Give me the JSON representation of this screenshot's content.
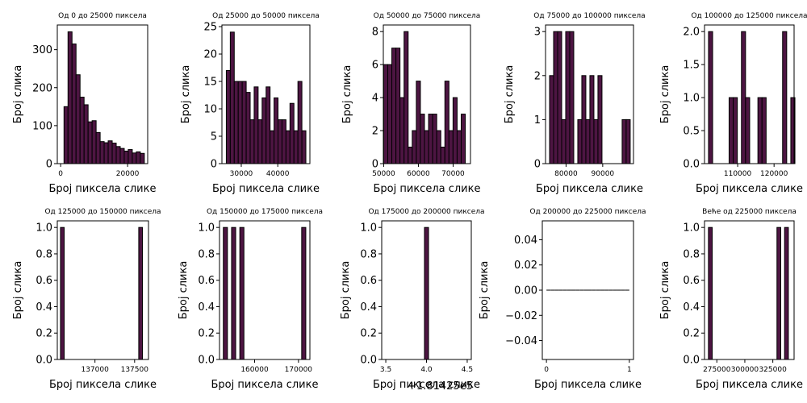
{
  "bar_color": "#4d1542",
  "edge_color": "#000000",
  "chart_data": [
    {
      "type": "bar",
      "title": "Од 0 до 25000 пиксела",
      "xlabel": "Број пиксела слике",
      "ylabel": "Број слика",
      "xlim": [
        -1000,
        26000
      ],
      "ylim": [
        0,
        365
      ],
      "xticks": [
        {
          "v": 0,
          "t": "0"
        },
        {
          "v": 20000,
          "t": "20000"
        }
      ],
      "yticks": [
        {
          "v": 0,
          "t": "0"
        },
        {
          "v": 100,
          "t": "100"
        },
        {
          "v": 200,
          "t": "200"
        },
        {
          "v": 300,
          "t": "300"
        }
      ],
      "x_tick_size": "small",
      "bins": {
        "start": 1000,
        "width": 1200
      },
      "values": [
        150,
        347,
        315,
        234,
        175,
        155,
        110,
        113,
        82,
        58,
        55,
        60,
        54,
        45,
        40,
        33,
        37,
        28,
        31,
        27
      ]
    },
    {
      "type": "bar",
      "title": "Од 25000 до 50000 пиксела",
      "xlabel": "Број пиксела слике",
      "ylabel": "Број слика",
      "xlim": [
        24700,
        48800
      ],
      "ylim": [
        0,
        25.3
      ],
      "xticks": [
        {
          "v": 30000,
          "t": "30000"
        },
        {
          "v": 40000,
          "t": "40000"
        }
      ],
      "yticks": [
        {
          "v": 0,
          "t": "0"
        },
        {
          "v": 5,
          "t": "5"
        },
        {
          "v": 10,
          "t": "10"
        },
        {
          "v": 15,
          "t": "15"
        },
        {
          "v": 20,
          "t": "20"
        },
        {
          "v": 25,
          "t": "25"
        }
      ],
      "x_tick_size": "small",
      "bins": {
        "start": 25900,
        "width": 1090
      },
      "values": [
        17,
        24,
        15,
        15,
        15,
        13,
        8,
        14,
        8,
        12,
        14,
        6,
        12,
        8,
        8,
        6,
        11,
        6,
        15,
        6
      ]
    },
    {
      "type": "bar",
      "title": "Од 50000 до 75000 пиксела",
      "xlabel": "Број пиксела слике",
      "ylabel": "Број слика",
      "xlim": [
        49900,
        75000
      ],
      "ylim": [
        0,
        8.4
      ],
      "xticks": [
        {
          "v": 50000,
          "t": "50000"
        },
        {
          "v": 60000,
          "t": "60000"
        },
        {
          "v": 70000,
          "t": "70000"
        }
      ],
      "yticks": [
        {
          "v": 0,
          "t": "0"
        },
        {
          "v": 2,
          "t": "2"
        },
        {
          "v": 4,
          "t": "4"
        },
        {
          "v": 6,
          "t": "6"
        },
        {
          "v": 8,
          "t": "8"
        }
      ],
      "x_tick_size": "small",
      "bins": {
        "start": 50000,
        "width": 1175
      },
      "values": [
        6,
        6,
        7,
        7,
        4,
        8,
        1,
        2,
        5,
        3,
        2,
        3,
        3,
        2,
        1,
        5,
        2,
        4,
        2,
        3
      ]
    },
    {
      "type": "bar",
      "title": "Од 75000 до 100000 пиксела",
      "xlabel": "Број пиксела слике",
      "ylabel": "Број слика",
      "xlim": [
        74400,
        98400
      ],
      "ylim": [
        0,
        3.15
      ],
      "xticks": [
        {
          "v": 80000,
          "t": "80000"
        },
        {
          "v": 90000,
          "t": "90000"
        }
      ],
      "yticks": [
        {
          "v": 0,
          "t": "0"
        },
        {
          "v": 1,
          "t": "1"
        },
        {
          "v": 2,
          "t": "2"
        },
        {
          "v": 3,
          "t": "3"
        }
      ],
      "x_tick_size": "small",
      "bins": {
        "start": 75500,
        "width": 1100
      },
      "values": [
        2,
        3,
        3,
        1,
        3,
        3,
        0,
        1,
        2,
        1,
        2,
        1,
        2,
        0,
        0,
        0,
        0,
        0,
        1,
        1
      ]
    },
    {
      "type": "bar",
      "title": "Од 100000 до 125000 пиксела",
      "xlabel": "Број пиксела слике",
      "ylabel": "Број слика",
      "xlim": [
        100900,
        125500
      ],
      "ylim": [
        0,
        2.1
      ],
      "xticks": [
        {
          "v": 110000,
          "t": "110000"
        },
        {
          "v": 120000,
          "t": "120000"
        }
      ],
      "yticks": [
        {
          "v": 0,
          "t": "0.0"
        },
        {
          "v": 0.5,
          "t": "0.5"
        },
        {
          "v": 1,
          "t": "1.0"
        },
        {
          "v": 1.5,
          "t": "1.5"
        },
        {
          "v": 2,
          "t": "2.0"
        }
      ],
      "x_tick_size": "small",
      "bins": {
        "start": 102000,
        "width": 1130
      },
      "values": [
        2,
        0,
        0,
        0,
        0,
        1,
        1,
        0,
        2,
        1,
        0,
        0,
        1,
        1,
        0,
        0,
        0,
        0,
        2,
        0,
        1
      ]
    },
    {
      "type": "bar",
      "title": "Од 125000 до 150000 пиксела",
      "xlabel": "Број пиксела слике",
      "ylabel": "Број слика",
      "xlim": [
        136525,
        137675
      ],
      "ylim": [
        0,
        1.05
      ],
      "xticks": [
        {
          "v": 137000,
          "t": "137000"
        },
        {
          "v": 137500,
          "t": "137500"
        }
      ],
      "yticks": [
        {
          "v": 0,
          "t": "0.0"
        },
        {
          "v": 0.2,
          "t": "0.2"
        },
        {
          "v": 0.4,
          "t": "0.4"
        },
        {
          "v": 0.6,
          "t": "0.6"
        },
        {
          "v": 0.8,
          "t": "0.8"
        },
        {
          "v": 1,
          "t": "1.0"
        }
      ],
      "x_tick_size": "small",
      "bins": {
        "start": 136565,
        "width": 47
      },
      "values": [
        1,
        0,
        0,
        0,
        0,
        0,
        0,
        0,
        0,
        0,
        0,
        0,
        0,
        0,
        0,
        0,
        0,
        0,
        0,
        0,
        0,
        1
      ]
    },
    {
      "type": "bar",
      "title": "Од 150000 до 175000 пиксела",
      "xlabel": "Број пиксела слике",
      "ylabel": "Број слика",
      "xlim": [
        152000,
        172600
      ],
      "ylim": [
        0,
        1.05
      ],
      "xticks": [
        {
          "v": 160000,
          "t": "160000"
        },
        {
          "v": 170000,
          "t": "170000"
        }
      ],
      "yticks": [
        {
          "v": 0,
          "t": "0.0"
        },
        {
          "v": 0.2,
          "t": "0.2"
        },
        {
          "v": 0.4,
          "t": "0.4"
        },
        {
          "v": 0.6,
          "t": "0.6"
        },
        {
          "v": 0.8,
          "t": "0.8"
        },
        {
          "v": 1,
          "t": "1.0"
        }
      ],
      "x_tick_size": "small",
      "bins": {
        "start": 152870,
        "width": 940
      },
      "values": [
        1,
        0,
        1,
        0,
        1,
        0,
        0,
        0,
        0,
        0,
        0,
        0,
        0,
        0,
        0,
        0,
        0,
        0,
        0,
        1
      ]
    },
    {
      "type": "bar",
      "title": "Од 175000 до 200000 пиксела",
      "xlabel": "Број пиксела слике",
      "ylabel": "Број слика",
      "xlim": [
        3.45,
        4.55
      ],
      "ylim": [
        0,
        1.05
      ],
      "xticks": [
        {
          "v": 3.5,
          "t": "3.5"
        },
        {
          "v": 4.0,
          "t": "4.0"
        },
        {
          "v": 4.5,
          "t": "4.5"
        }
      ],
      "yticks": [
        {
          "v": 0,
          "t": "0.0"
        },
        {
          "v": 0.2,
          "t": "0.2"
        },
        {
          "v": 0.4,
          "t": "0.4"
        },
        {
          "v": 0.6,
          "t": "0.6"
        },
        {
          "v": 0.8,
          "t": "0.8"
        },
        {
          "v": 1,
          "t": "1.0"
        }
      ],
      "x_tick_size": "small",
      "offset_text": "+1.81425e5",
      "bins": {
        "start": 3.975,
        "width": 0.05
      },
      "values": [
        1
      ]
    },
    {
      "type": "bar",
      "title": "Од 200000 до 225000 пиксела",
      "xlabel": "Број пиксела слике",
      "ylabel": "Број слика",
      "xlim": [
        -0.05,
        1.05
      ],
      "ylim": [
        -0.055,
        0.055
      ],
      "xticks": [
        {
          "v": 0,
          "t": "0"
        },
        {
          "v": 1,
          "t": "1"
        }
      ],
      "yticks": [
        {
          "v": -0.04,
          "t": "−0.04"
        },
        {
          "v": -0.02,
          "t": "−0.02"
        },
        {
          "v": 0,
          "t": "0.00"
        },
        {
          "v": 0.02,
          "t": "0.02"
        },
        {
          "v": 0.04,
          "t": "0.04"
        }
      ],
      "x_tick_size": "small",
      "bins": {
        "start": 0,
        "width": 0.05
      },
      "values": [
        0,
        0,
        0,
        0,
        0,
        0,
        0,
        0,
        0,
        0,
        0,
        0,
        0,
        0,
        0,
        0,
        0,
        0,
        0,
        0
      ]
    },
    {
      "type": "bar",
      "title": "Веће од 225000 пиксела",
      "xlabel": "Број пиксела слике",
      "ylabel": "Број слика",
      "xlim": [
        264000,
        344000
      ],
      "ylim": [
        0,
        1.05
      ],
      "xticks": [
        {
          "v": 275000,
          "t": "275000"
        },
        {
          "v": 300000,
          "t": "300000"
        },
        {
          "v": 325000,
          "t": "325000"
        }
      ],
      "yticks": [
        {
          "v": 0,
          "t": "0.0"
        },
        {
          "v": 0.2,
          "t": "0.2"
        },
        {
          "v": 0.4,
          "t": "0.4"
        },
        {
          "v": 0.6,
          "t": "0.6"
        },
        {
          "v": 0.8,
          "t": "0.8"
        },
        {
          "v": 1,
          "t": "1.0"
        }
      ],
      "x_tick_size": "small",
      "bins": {
        "start": 267500,
        "width": 3400
      },
      "values": [
        1,
        0,
        0,
        0,
        0,
        0,
        0,
        0,
        0,
        0,
        0,
        0,
        0,
        0,
        0,
        0,
        0,
        0,
        1,
        0,
        1
      ]
    }
  ]
}
